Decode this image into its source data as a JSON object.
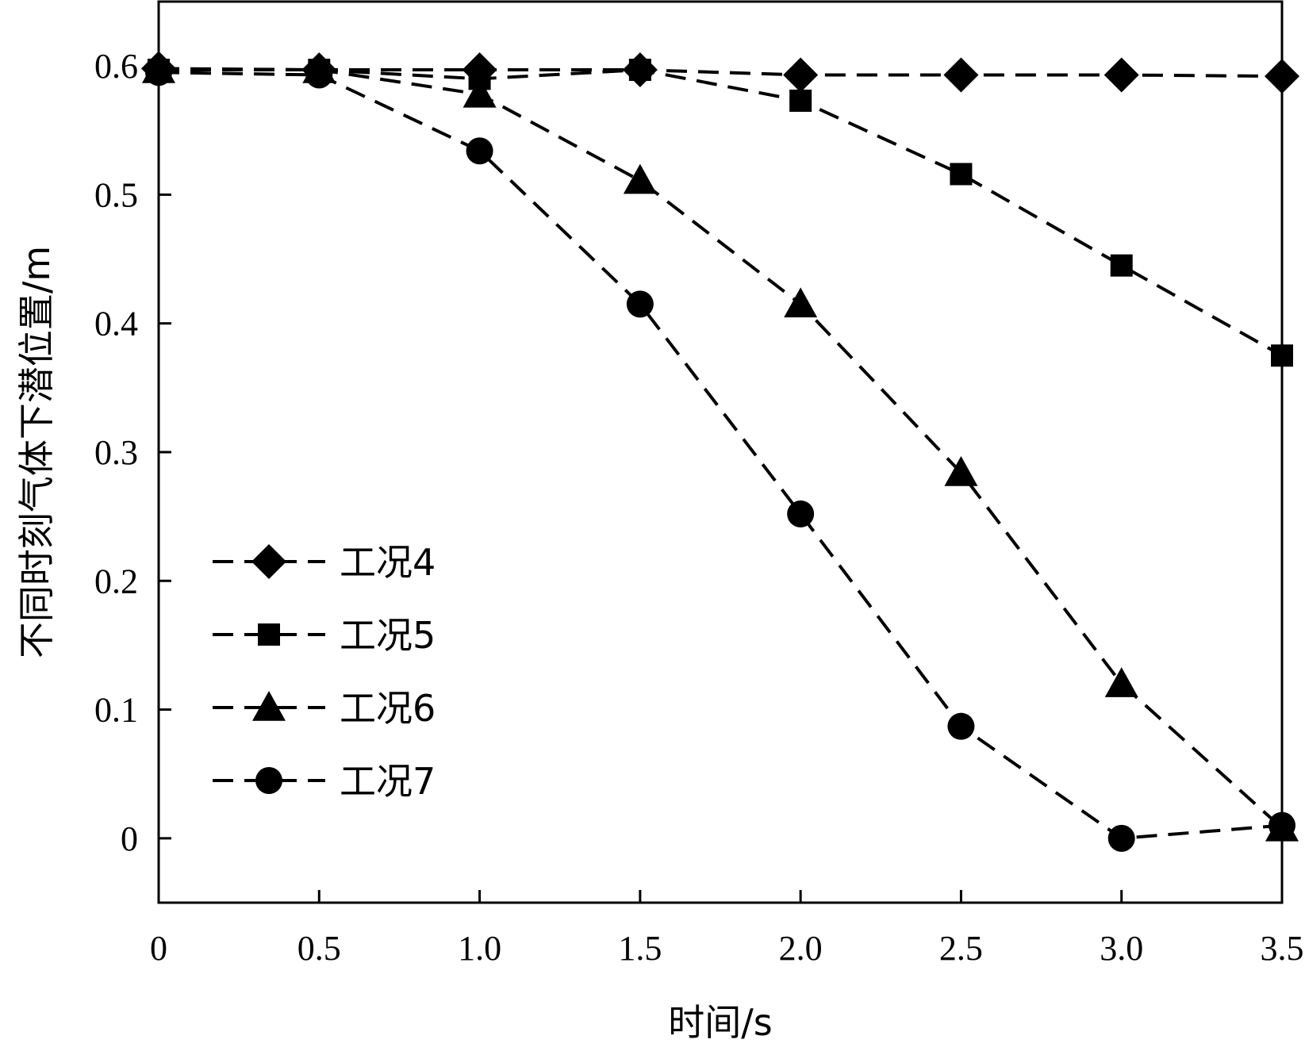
{
  "chart_data": {
    "type": "line",
    "xlabel": "时间/s",
    "ylabel": "不同时刻气体下潜位置/m",
    "xlim": [
      0,
      3.5
    ],
    "ylim": [
      -0.05,
      0.65
    ],
    "x_ticks": [
      "0",
      "0.5",
      "1.0",
      "1.5",
      "2.0",
      "2.5",
      "3.0",
      "3.5"
    ],
    "y_ticks": [
      "0",
      "0.1",
      "0.2",
      "0.3",
      "0.4",
      "0.5",
      "0.6"
    ],
    "grid": false,
    "legend_position": "lower-left",
    "line_style": "dashed",
    "color": "#000000",
    "x": [
      0,
      0.5,
      1.0,
      1.5,
      2.0,
      2.5,
      3.0,
      3.5
    ],
    "series": [
      {
        "name": "工况4",
        "marker": "diamond",
        "values": [
          0.598,
          0.597,
          0.597,
          0.597,
          0.593,
          0.593,
          0.593,
          0.592
        ]
      },
      {
        "name": "工况5",
        "marker": "square",
        "values": [
          0.597,
          0.597,
          0.59,
          0.597,
          0.573,
          0.516,
          0.445,
          0.375
        ]
      },
      {
        "name": "工况6",
        "marker": "triangle",
        "values": [
          0.597,
          0.597,
          0.578,
          0.511,
          0.415,
          0.284,
          0.12,
          0.008
        ]
      },
      {
        "name": "工况7",
        "marker": "circle",
        "values": [
          0.595,
          0.593,
          0.534,
          0.415,
          0.252,
          0.087,
          0.0,
          0.01
        ]
      }
    ]
  }
}
